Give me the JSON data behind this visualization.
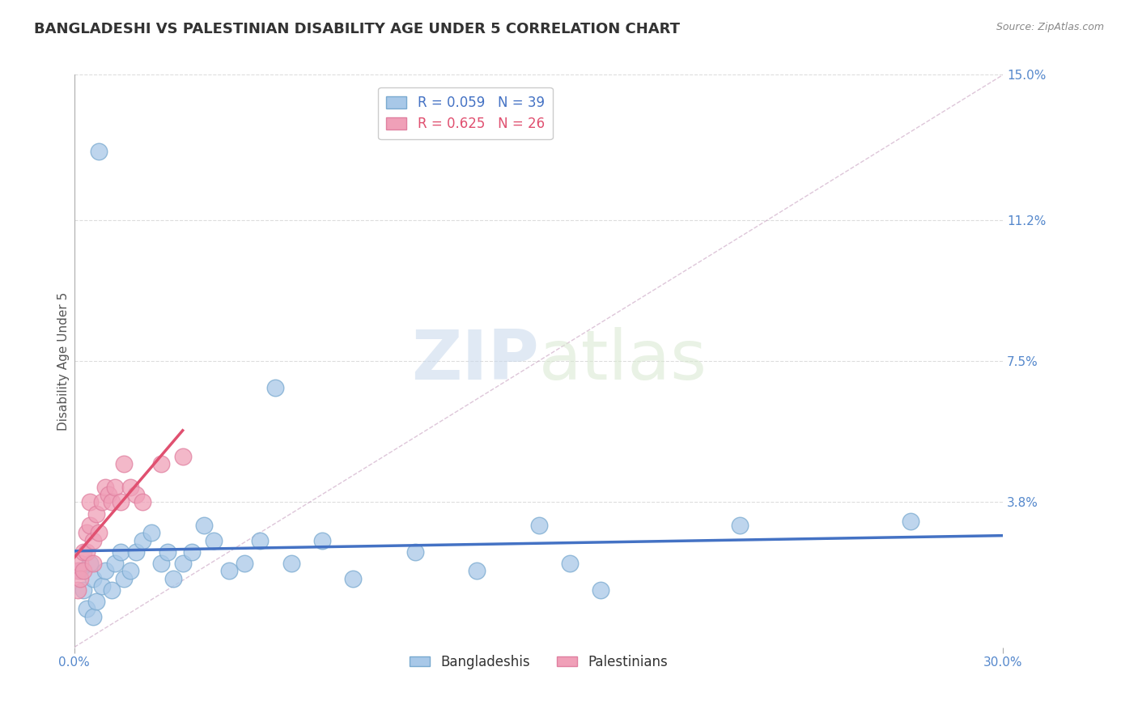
{
  "title": "BANGLADESHI VS PALESTINIAN DISABILITY AGE UNDER 5 CORRELATION CHART",
  "source": "Source: ZipAtlas.com",
  "xlabel": "",
  "ylabel": "Disability Age Under 5",
  "xlim": [
    0.0,
    0.3
  ],
  "ylim": [
    0.0,
    0.15
  ],
  "yticks": [
    0.038,
    0.075,
    0.112,
    0.15
  ],
  "ytick_labels": [
    "3.8%",
    "7.5%",
    "11.2%",
    "15.0%"
  ],
  "xticks": [
    0.0,
    0.3
  ],
  "xtick_labels": [
    "0.0%",
    "30.0%"
  ],
  "blue_R": 0.059,
  "blue_N": 39,
  "pink_R": 0.625,
  "pink_N": 26,
  "blue_color": "#A8C8E8",
  "pink_color": "#F0A0B8",
  "blue_line_color": "#4472C4",
  "pink_line_color": "#E05070",
  "legend_blue_label": "Bangladeshis",
  "legend_pink_label": "Palestinians",
  "watermark_text": "ZIPatlas",
  "background_color": "#FFFFFF",
  "blue_x": [
    0.002,
    0.003,
    0.004,
    0.005,
    0.006,
    0.006,
    0.007,
    0.008,
    0.009,
    0.01,
    0.012,
    0.013,
    0.015,
    0.016,
    0.018,
    0.02,
    0.022,
    0.025,
    0.028,
    0.03,
    0.032,
    0.035,
    0.038,
    0.042,
    0.045,
    0.05,
    0.055,
    0.06,
    0.065,
    0.07,
    0.08,
    0.09,
    0.11,
    0.13,
    0.15,
    0.16,
    0.17,
    0.215,
    0.27
  ],
  "blue_y": [
    0.02,
    0.015,
    0.01,
    0.022,
    0.018,
    0.008,
    0.012,
    0.13,
    0.016,
    0.02,
    0.015,
    0.022,
    0.025,
    0.018,
    0.02,
    0.025,
    0.028,
    0.03,
    0.022,
    0.025,
    0.018,
    0.022,
    0.025,
    0.032,
    0.028,
    0.02,
    0.022,
    0.028,
    0.068,
    0.022,
    0.028,
    0.018,
    0.025,
    0.02,
    0.032,
    0.022,
    0.015,
    0.032,
    0.033
  ],
  "pink_x": [
    0.001,
    0.001,
    0.002,
    0.002,
    0.003,
    0.003,
    0.004,
    0.004,
    0.005,
    0.005,
    0.006,
    0.006,
    0.007,
    0.008,
    0.009,
    0.01,
    0.011,
    0.012,
    0.013,
    0.015,
    0.016,
    0.018,
    0.02,
    0.022,
    0.028,
    0.035
  ],
  "pink_y": [
    0.02,
    0.015,
    0.022,
    0.018,
    0.025,
    0.02,
    0.03,
    0.025,
    0.038,
    0.032,
    0.028,
    0.022,
    0.035,
    0.03,
    0.038,
    0.042,
    0.04,
    0.038,
    0.042,
    0.038,
    0.048,
    0.042,
    0.04,
    0.038,
    0.048,
    0.05
  ],
  "title_fontsize": 13,
  "axis_label_fontsize": 11,
  "tick_fontsize": 11,
  "legend_fontsize": 12
}
